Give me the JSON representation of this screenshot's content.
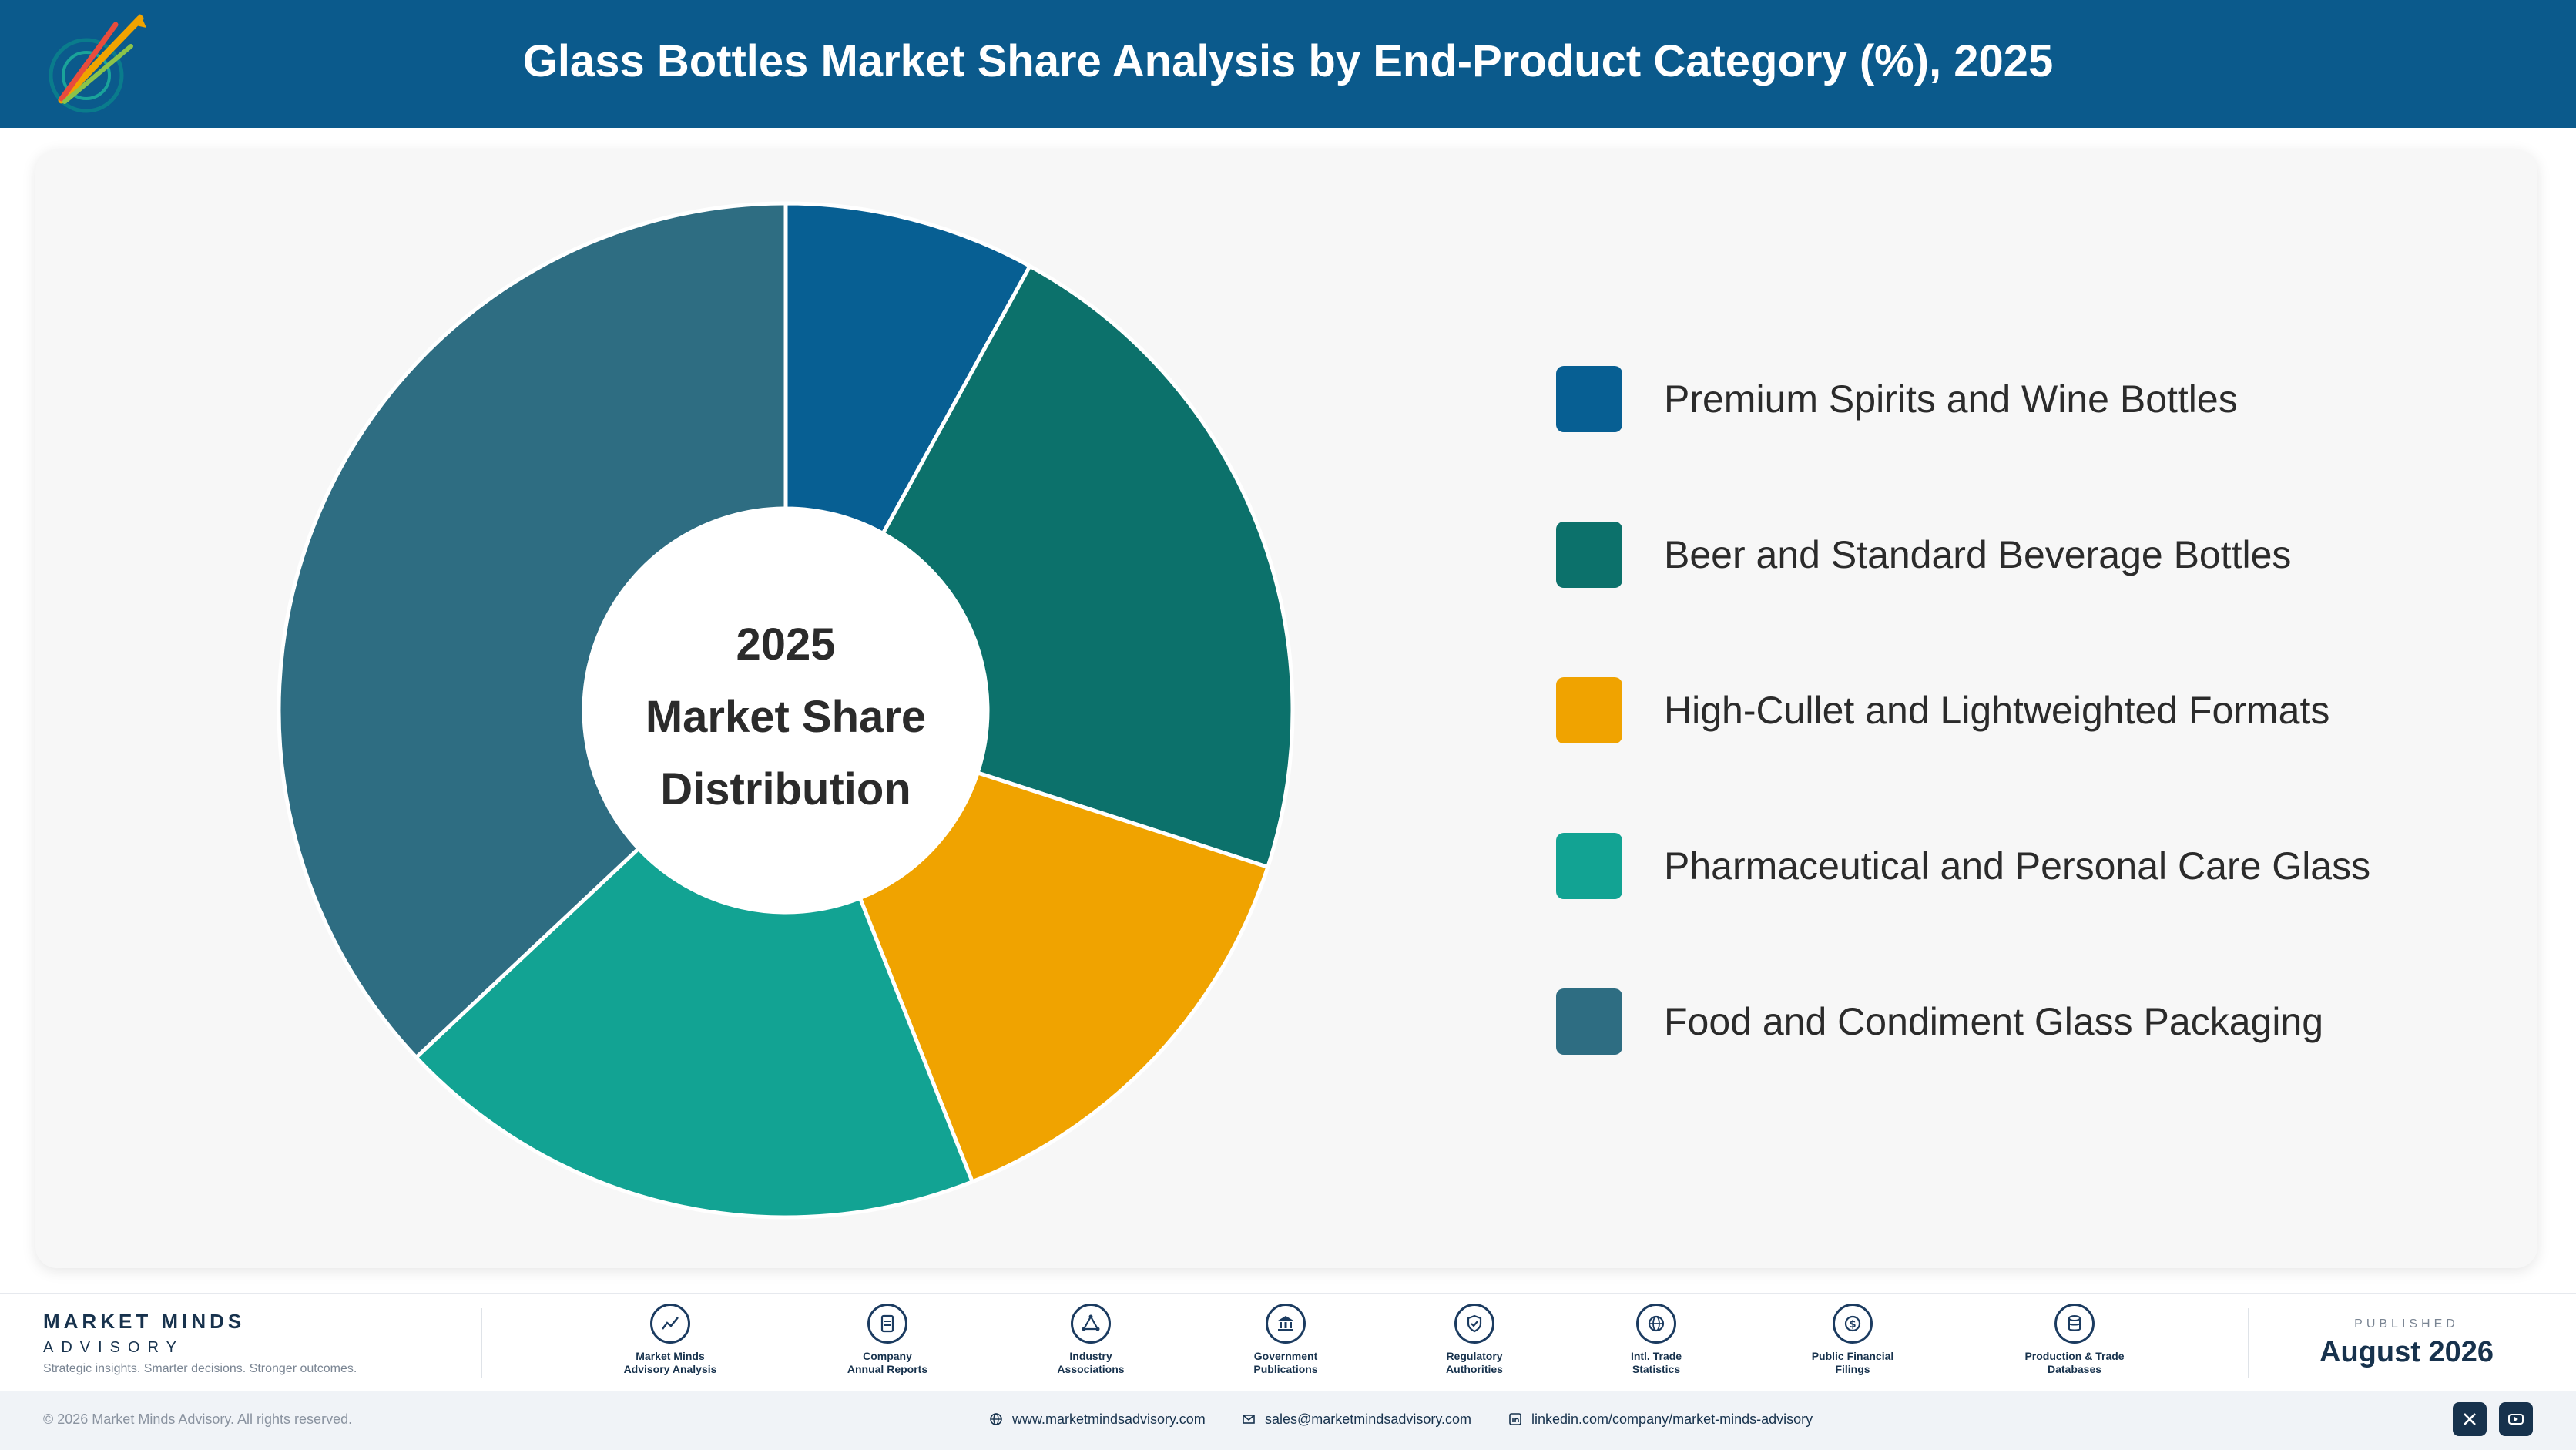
{
  "header": {
    "title": "Glass Bottles Market Share Analysis by End-Product Category (%), 2025"
  },
  "chart_data": {
    "type": "pie",
    "variant": "donut",
    "categories": [
      "Premium Spirits and Wine Bottles",
      "Beer and Standard Beverage Bottles",
      "High-Cullet and Lightweighted Formats",
      "Pharmaceutical and Personal Care Glass",
      "Food and Condiment Glass Packaging"
    ],
    "values": [
      8,
      22,
      14,
      19,
      37
    ],
    "colors": [
      "#075f93",
      "#0c716b",
      "#f0a300",
      "#12a393",
      "#2e6d82"
    ],
    "legend_position": "right",
    "center_label": [
      "2025",
      "Market Share",
      "Distribution"
    ]
  },
  "footer": {
    "brand_name": "MARKET MINDS",
    "brand_sub": "ADVISORY",
    "tagline": "Strategic insights. Smarter decisions. Stronger outcomes.",
    "sources": [
      {
        "icon": "chart-line-icon",
        "label": "Market Minds\nAdvisory Analysis"
      },
      {
        "icon": "document-icon",
        "label": "Company\nAnnual Reports"
      },
      {
        "icon": "network-icon",
        "label": "Industry\nAssociations"
      },
      {
        "icon": "government-building-icon",
        "label": "Government\nPublications"
      },
      {
        "icon": "shield-check-icon",
        "label": "Regulatory\nAuthorities"
      },
      {
        "icon": "globe-icon",
        "label": "Intl. Trade\nStatistics"
      },
      {
        "icon": "dollar-coin-icon",
        "label": "Public Financial\nFilings"
      },
      {
        "icon": "database-icon",
        "label": "Production & Trade\nDatabases"
      }
    ],
    "published_label": "PUBLISHED",
    "published_date": "August 2026"
  },
  "bottom_bar": {
    "copyright": "© 2026 Market Minds Advisory. All rights reserved.",
    "website": "www.marketmindsadvisory.com",
    "email": "sales@marketmindsadvisory.com",
    "linkedin": "linkedin.com/company/market-minds-advisory"
  }
}
